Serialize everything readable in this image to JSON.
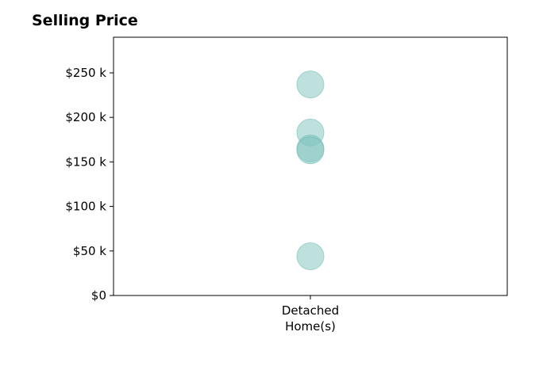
{
  "chart_data": {
    "type": "scatter",
    "title": "Selling Price",
    "categories": [
      "Detached\nHome(s)"
    ],
    "series": [
      {
        "category": "Detached\nHome(s)",
        "values": [
          237000,
          183000,
          165000,
          163000,
          44000
        ]
      }
    ],
    "ylim": [
      0,
      290000
    ],
    "yticks": [
      0,
      50000,
      100000,
      150000,
      200000,
      250000
    ],
    "ytick_labels": [
      "$0",
      "$50 k",
      "$100 k",
      "$150 k",
      "$200 k",
      "$250 k"
    ],
    "xlabel": "",
    "ylabel": "",
    "grid": false,
    "marker_color": "#7fc4bd"
  }
}
